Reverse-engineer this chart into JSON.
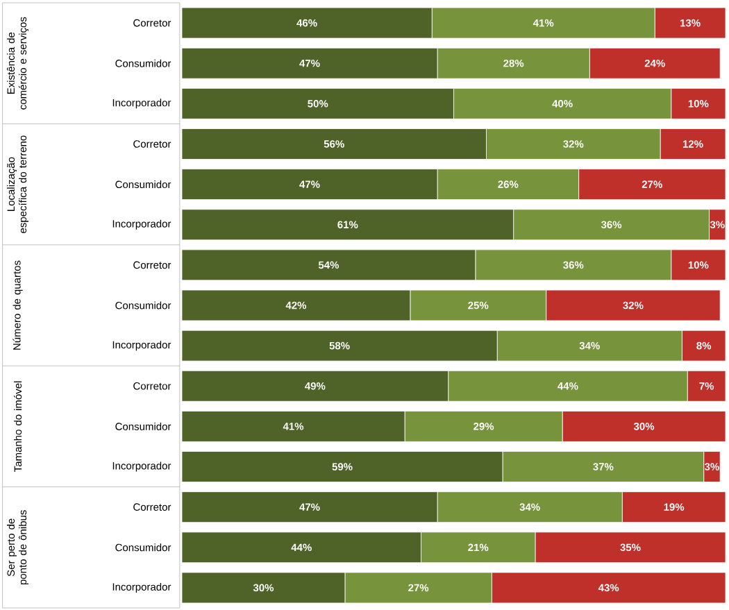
{
  "chart_data": {
    "type": "bar",
    "orientation": "horizontal",
    "stacked": true,
    "categories": [
      "Corretor",
      "Consumidor",
      "Incorporador",
      "Corretor",
      "Consumidor",
      "Incorporador",
      "Corretor",
      "Consumidor",
      "Incorporador",
      "Corretor",
      "Consumidor",
      "Incorporador",
      "Corretor",
      "Consumidor",
      "Incorporador"
    ],
    "annotations": [
      "Existência de comércio e serviços",
      "Localização específica do terreno",
      "Número de quartos",
      "Tamanho do imóvel",
      "Ser perto de ponto de ônibus"
    ],
    "series": [
      {
        "color": "#4f6228",
        "values": [
          46,
          47,
          50,
          56,
          47,
          61,
          54,
          42,
          58,
          49,
          41,
          59,
          47,
          44,
          30
        ],
        "value_labels": [
          "46%",
          "47%",
          "50%",
          "56%",
          "47%",
          "61%",
          "54%",
          "42%",
          "58%",
          "49%",
          "41%",
          "59%",
          "47%",
          "44%",
          "30%"
        ]
      },
      {
        "color": "#77933c",
        "values": [
          41,
          28,
          40,
          32,
          26,
          36,
          36,
          25,
          34,
          44,
          29,
          37,
          34,
          21,
          27
        ],
        "value_labels": [
          "41%",
          "28%",
          "40%",
          "32%",
          "26%",
          "36%",
          "36%",
          "25%",
          "34%",
          "44%",
          "29%",
          "37%",
          "34%",
          "21%",
          "27%"
        ]
      },
      {
        "color": "#c0302a",
        "values": [
          13,
          24,
          10,
          12,
          27,
          3,
          10,
          32,
          8,
          7,
          30,
          3,
          19,
          35,
          43
        ],
        "value_labels": [
          "13%",
          "24%",
          "10%",
          "12%",
          "27%",
          "3%",
          "10%",
          "32%",
          "8%",
          "7%",
          "30%",
          "3%",
          "19%",
          "35%",
          "43%"
        ]
      }
    ]
  }
}
